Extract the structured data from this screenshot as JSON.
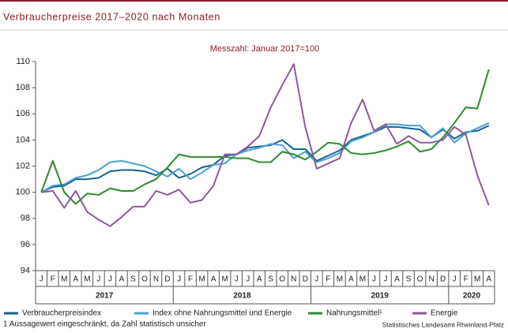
{
  "chart_data": {
    "type": "line",
    "title": "Verbraucherpreise 2017–2020 nach Monaten",
    "subtitle": "Messzahl: Januar 2017=100",
    "categories": [
      "J",
      "F",
      "M",
      "A",
      "M",
      "J",
      "J",
      "A",
      "S",
      "O",
      "N",
      "D",
      "J",
      "F",
      "M",
      "A",
      "M",
      "J",
      "J",
      "A",
      "S",
      "O",
      "N",
      "D",
      "J",
      "F",
      "M",
      "A",
      "M",
      "J",
      "J",
      "A",
      "S",
      "O",
      "N",
      "D",
      "J",
      "F",
      "M",
      "A"
    ],
    "years": [
      "2017",
      "2018",
      "2019",
      "2020"
    ],
    "ylim": [
      94,
      110
    ],
    "yticks": [
      94,
      96,
      98,
      100,
      102,
      104,
      106,
      108,
      110
    ],
    "grid": false,
    "series": [
      {
        "name": "Verbraucherpreisindex",
        "color": "#17618f",
        "values": [
          100,
          100.4,
          100.5,
          101.0,
          101.0,
          101.1,
          101.6,
          101.7,
          101.7,
          101.6,
          101.3,
          101.8,
          101.1,
          101.4,
          101.9,
          102.1,
          102.8,
          102.9,
          103.4,
          103.5,
          103.6,
          104.0,
          103.3,
          103.3,
          102.4,
          102.8,
          103.2,
          104.0,
          104.3,
          104.6,
          105.0,
          105.0,
          104.9,
          104.8,
          104.2,
          104.8,
          104.1,
          104.6,
          104.7,
          105.1
        ]
      },
      {
        "name": "Index ohne Nahrungsmittel und Energie",
        "color": "#4a9fd4",
        "values": [
          100,
          100.5,
          100.6,
          101.1,
          101.3,
          101.7,
          102.3,
          102.4,
          102.2,
          102.0,
          101.6,
          101.2,
          101.8,
          101.0,
          101.5,
          102.1,
          102.2,
          102.9,
          103.2,
          103.4,
          103.7,
          103.6,
          102.6,
          103.1,
          102.3,
          102.6,
          103.0,
          103.9,
          104.2,
          104.6,
          105.2,
          105.2,
          105.1,
          105.1,
          104.2,
          104.9,
          103.8,
          104.5,
          104.9,
          105.3
        ]
      },
      {
        "name": "Nahrungsmittel¹",
        "color": "#2e8b2e",
        "values": [
          100,
          102.4,
          100.0,
          99.1,
          99.9,
          99.8,
          100.3,
          100.1,
          100.1,
          100.6,
          101.0,
          101.9,
          102.9,
          102.7,
          102.7,
          102.7,
          102.7,
          102.6,
          102.6,
          102.3,
          102.3,
          103.1,
          102.9,
          102.5,
          103.1,
          103.8,
          103.7,
          103.0,
          102.9,
          103.0,
          103.2,
          103.5,
          103.9,
          103.1,
          103.3,
          104.2,
          105.3,
          106.5,
          106.4,
          109.4
        ]
      },
      {
        "name": "Energie",
        "color": "#8b5a9b",
        "values": [
          100,
          100.1,
          98.8,
          100.1,
          98.5,
          97.9,
          97.4,
          98.1,
          98.9,
          98.9,
          100.1,
          99.8,
          100.2,
          99.2,
          99.4,
          100.5,
          102.9,
          102.9,
          103.5,
          104.3,
          106.5,
          108.2,
          109.8,
          105.0,
          101.8,
          102.2,
          102.6,
          105.3,
          107.1,
          104.7,
          105.2,
          103.7,
          104.3,
          103.8,
          103.8,
          104.0,
          105.0,
          104.4,
          101.3,
          99.0
        ]
      }
    ],
    "footnote": "1 Aussagewert eingeschränkt, da Zahl statistisch unsicher",
    "source": "Statistisches Landesamt Rheinland-Pfalz"
  }
}
